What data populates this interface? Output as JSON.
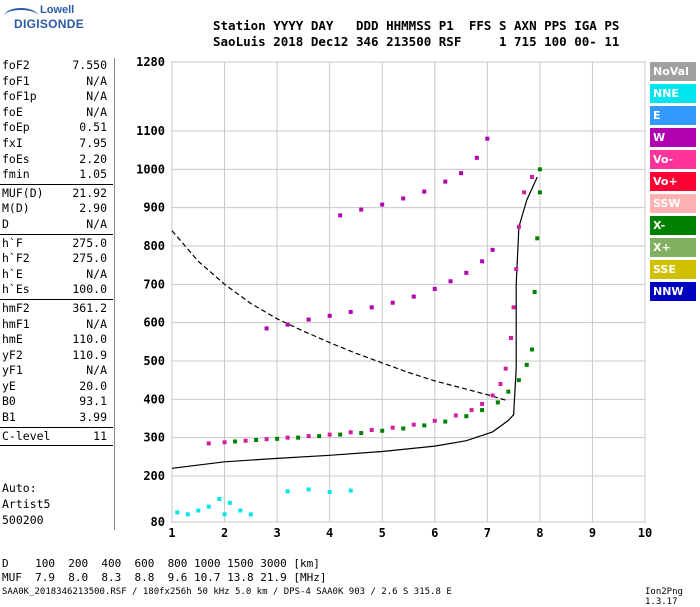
{
  "logo": {
    "line1": "Lowell",
    "line2": "DIGISONDE"
  },
  "header": {
    "line1": "Station YYYY DAY   DDD HHMMSS P1  FFS S AXN PPS IGA PS",
    "line2": "SaoLuis 2018 Dec12 346 213500 RSF     1 715 100 00- 11"
  },
  "params": {
    "group1": [
      {
        "label": "foF2",
        "value": "7.550"
      },
      {
        "label": "foF1",
        "value": "N/A"
      },
      {
        "label": "foF1p",
        "value": "N/A"
      },
      {
        "label": "foE",
        "value": "N/A"
      },
      {
        "label": "foEp",
        "value": "0.51"
      },
      {
        "label": "fxI",
        "value": "7.95"
      },
      {
        "label": "foEs",
        "value": "2.20"
      },
      {
        "label": "fmin",
        "value": "1.05"
      }
    ],
    "group2": [
      {
        "label": "MUF(D)",
        "value": "21.92"
      },
      {
        "label": "M(D)",
        "value": "2.90"
      },
      {
        "label": "D",
        "value": "N/A"
      }
    ],
    "group3": [
      {
        "label": "h`F",
        "value": "275.0"
      },
      {
        "label": "h`F2",
        "value": "275.0"
      },
      {
        "label": "h`E",
        "value": "N/A"
      },
      {
        "label": "h`Es",
        "value": "100.0"
      }
    ],
    "group4": [
      {
        "label": "hmF2",
        "value": "361.2"
      },
      {
        "label": "hmF1",
        "value": "N/A"
      },
      {
        "label": "hmE",
        "value": "110.0"
      },
      {
        "label": "yF2",
        "value": "110.9"
      },
      {
        "label": "yF1",
        "value": "N/A"
      },
      {
        "label": "yE",
        "value": "20.0"
      },
      {
        "label": "B0",
        "value": "93.1"
      },
      {
        "label": "B1",
        "value": "3.99"
      }
    ],
    "group5": [
      {
        "label": "C-level",
        "value": "11"
      }
    ]
  },
  "auto": {
    "line1": "Auto:",
    "line2": "Artist5",
    "line3": "500200"
  },
  "legend": [
    {
      "label": "NoVal",
      "color": "#a0a0a0"
    },
    {
      "label": "NNE",
      "color": "#00e5ee"
    },
    {
      "label": "E",
      "color": "#3399ff"
    },
    {
      "label": "W",
      "color": "#b000b0"
    },
    {
      "label": "Vo-",
      "color": "#ff3399"
    },
    {
      "label": "Vo+",
      "color": "#ff0033"
    },
    {
      "label": "SSW",
      "color": "#ffb0b0"
    },
    {
      "label": "X-",
      "color": "#008000"
    },
    {
      "label": "X+",
      "color": "#80b060"
    },
    {
      "label": "SSE",
      "color": "#d0c000"
    },
    {
      "label": "NNW",
      "color": "#0000c0"
    }
  ],
  "footer": {
    "line1": "D    100  200  400  600  800 1000 1500 3000 [km]",
    "line2": "MUF  7.9  8.0  8.3  8.8  9.6 10.7 13.8 21.9 [MHz]"
  },
  "bottom": {
    "file": "SAA0K_2018346213500.RSF / 180fx256h 50 kHz 5.0 km / DPS-4 SAA0K 903 / 2.6 S 315.8 E",
    "version": "Ion2Png 1.3.17"
  },
  "chart_data": {
    "type": "scatter",
    "x_ticks": [
      "1",
      "2",
      "3",
      "4",
      "5",
      "6",
      "7",
      "8",
      "9",
      "10"
    ],
    "y_ticks": [
      "80",
      "200",
      "300",
      "400",
      "500",
      "600",
      "700",
      "800",
      "900",
      "1000",
      "1100",
      "1280"
    ],
    "xlim": [
      1,
      10
    ],
    "ylim": [
      80,
      1280
    ],
    "series": [
      {
        "name": "O-trace",
        "color": "#d020a0",
        "points": [
          [
            1.7,
            285
          ],
          [
            2.0,
            288
          ],
          [
            2.4,
            292
          ],
          [
            2.8,
            296
          ],
          [
            3.2,
            300
          ],
          [
            3.6,
            304
          ],
          [
            4.0,
            308
          ],
          [
            4.4,
            314
          ],
          [
            4.8,
            320
          ],
          [
            5.2,
            326
          ],
          [
            5.6,
            334
          ],
          [
            6.0,
            344
          ],
          [
            6.4,
            358
          ],
          [
            6.7,
            372
          ],
          [
            6.9,
            388
          ],
          [
            7.1,
            410
          ],
          [
            7.25,
            440
          ],
          [
            7.35,
            480
          ],
          [
            7.45,
            560
          ],
          [
            7.5,
            640
          ],
          [
            7.55,
            740
          ],
          [
            7.6,
            850
          ],
          [
            7.7,
            940
          ],
          [
            7.85,
            980
          ]
        ]
      },
      {
        "name": "X-trace",
        "color": "#008000",
        "points": [
          [
            2.2,
            290
          ],
          [
            2.6,
            294
          ],
          [
            3.0,
            297
          ],
          [
            3.4,
            300
          ],
          [
            3.8,
            304
          ],
          [
            4.2,
            308
          ],
          [
            4.6,
            312
          ],
          [
            5.0,
            318
          ],
          [
            5.4,
            324
          ],
          [
            5.8,
            332
          ],
          [
            6.2,
            342
          ],
          [
            6.6,
            356
          ],
          [
            6.9,
            372
          ],
          [
            7.2,
            392
          ],
          [
            7.4,
            420
          ],
          [
            7.6,
            450
          ],
          [
            7.75,
            490
          ],
          [
            7.85,
            530
          ],
          [
            7.9,
            680
          ],
          [
            7.95,
            820
          ],
          [
            8.0,
            940
          ],
          [
            8.0,
            1000
          ]
        ]
      },
      {
        "name": "2F",
        "color": "#b000b0",
        "points": [
          [
            2.8,
            585
          ],
          [
            3.2,
            595
          ],
          [
            3.6,
            608
          ],
          [
            4.0,
            618
          ],
          [
            4.4,
            628
          ],
          [
            4.8,
            640
          ],
          [
            5.2,
            652
          ],
          [
            5.6,
            668
          ],
          [
            6.0,
            688
          ],
          [
            6.3,
            708
          ],
          [
            6.6,
            730
          ],
          [
            6.9,
            760
          ],
          [
            7.1,
            790
          ]
        ]
      },
      {
        "name": "3F",
        "color": "#b000b0",
        "points": [
          [
            4.2,
            880
          ],
          [
            4.6,
            895
          ],
          [
            5.0,
            908
          ],
          [
            5.4,
            924
          ],
          [
            5.8,
            942
          ],
          [
            6.2,
            968
          ],
          [
            6.5,
            990
          ],
          [
            6.8,
            1030
          ],
          [
            7.0,
            1080
          ]
        ]
      },
      {
        "name": "Es",
        "color": "#00e5ee",
        "points": [
          [
            1.1,
            105
          ],
          [
            1.3,
            100
          ],
          [
            1.5,
            110
          ],
          [
            1.7,
            120
          ],
          [
            1.9,
            140
          ],
          [
            2.0,
            100
          ],
          [
            2.1,
            130
          ],
          [
            2.3,
            110
          ],
          [
            2.5,
            100
          ],
          [
            3.2,
            160
          ],
          [
            3.6,
            165
          ],
          [
            4.0,
            158
          ],
          [
            4.4,
            162
          ]
        ]
      }
    ],
    "profile_curve": [
      [
        1.0,
        220
      ],
      [
        2.0,
        237
      ],
      [
        3.0,
        246
      ],
      [
        4.0,
        254
      ],
      [
        5.0,
        264
      ],
      [
        6.0,
        278
      ],
      [
        6.6,
        292
      ],
      [
        7.1,
        315
      ],
      [
        7.4,
        345
      ],
      [
        7.5,
        360
      ],
      [
        7.55,
        480
      ],
      [
        7.55,
        700
      ],
      [
        7.6,
        850
      ],
      [
        7.75,
        920
      ],
      [
        7.95,
        980
      ]
    ],
    "muf_curve": [
      [
        1.0,
        840
      ],
      [
        1.5,
        760
      ],
      [
        2.0,
        700
      ],
      [
        2.5,
        650
      ],
      [
        3.0,
        610
      ],
      [
        3.5,
        578
      ],
      [
        4.0,
        548
      ],
      [
        4.5,
        520
      ],
      [
        5.0,
        495
      ],
      [
        5.5,
        470
      ],
      [
        6.0,
        448
      ],
      [
        6.5,
        430
      ],
      [
        7.0,
        412
      ],
      [
        7.4,
        396
      ]
    ]
  }
}
